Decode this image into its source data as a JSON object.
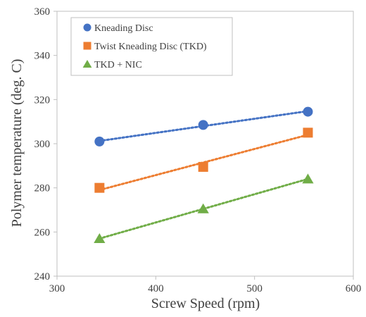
{
  "chart_data": {
    "type": "scatter",
    "title": "",
    "xlabel": "Screw Speed (rpm)",
    "ylabel": "Polymer temperature (deg. C)",
    "xlim": [
      300,
      600
    ],
    "ylim": [
      240,
      360
    ],
    "x_ticks": [
      300,
      400,
      500,
      600
    ],
    "y_ticks": [
      240,
      260,
      280,
      300,
      320,
      340,
      360
    ],
    "grid": false,
    "legend_position": "top-left",
    "trendlines": "linear, dotted",
    "series": [
      {
        "name": "Kneading Disc",
        "marker": "circle",
        "color": "#4472C4",
        "x": [
          343,
          448,
          554
        ],
        "y": [
          301,
          308.5,
          314.5
        ]
      },
      {
        "name": "Twist Kneading Disc (TKD)",
        "marker": "square",
        "color": "#ED7D31",
        "x": [
          343,
          448,
          554
        ],
        "y": [
          280,
          289.5,
          305
        ]
      },
      {
        "name": "TKD + NIC",
        "marker": "triangle",
        "color": "#70AD47",
        "x": [
          343,
          448,
          554
        ],
        "y": [
          257,
          270.5,
          284
        ]
      }
    ]
  }
}
